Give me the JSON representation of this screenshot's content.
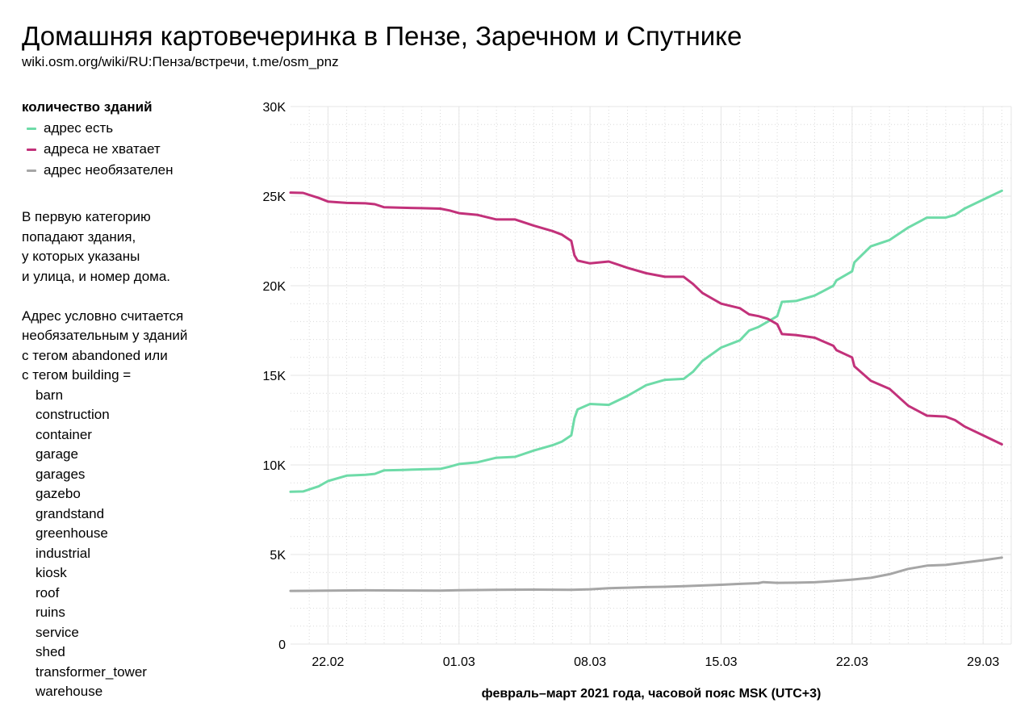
{
  "header": {
    "title": "Домашняя картовечеринка в Пензе, Заречном и Спутнике",
    "subtitle": "wiki.osm.org/wiki/RU:Пенза/встречи, t.me/osm_pnz"
  },
  "legend": {
    "title": "количество зданий",
    "items": [
      {
        "label": "адрес есть",
        "color": "#6edba8"
      },
      {
        "label": "адреса не хватает",
        "color": "#c2317a"
      },
      {
        "label": "адрес необязателен",
        "color": "#a6a6a6"
      }
    ]
  },
  "note": {
    "paragraph1": [
      "В первую категорию",
      "попадают здания,",
      "у которых указаны",
      "и улица, и номер дома."
    ],
    "paragraph2": [
      "Адрес условно считается",
      "необязательным у зданий",
      "с тегом abandoned или",
      "с тегом building ="
    ],
    "tags": [
      "barn",
      "construction",
      "container",
      "garage",
      "garages",
      "gazebo",
      "grandstand",
      "greenhouse",
      "industrial",
      "kiosk",
      "roof",
      "ruins",
      "service",
      "shed",
      "transformer_tower",
      "warehouse"
    ]
  },
  "chart_data": {
    "type": "line",
    "xlabel": "февраль–март 2021 года, часовой пояс MSK (UTC+3)",
    "ylabel": "",
    "xlim": [
      "2021-02-20",
      "2021-03-30 12:00"
    ],
    "ylim": [
      0,
      30000
    ],
    "x_ticks": [
      {
        "date": "2021-02-22",
        "label": "22.02"
      },
      {
        "date": "2021-03-01",
        "label": "01.03"
      },
      {
        "date": "2021-03-08",
        "label": "08.03"
      },
      {
        "date": "2021-03-15",
        "label": "15.03"
      },
      {
        "date": "2021-03-22",
        "label": "22.03"
      },
      {
        "date": "2021-03-29",
        "label": "29.03"
      }
    ],
    "y_ticks": [
      {
        "value": 0,
        "label": "0"
      },
      {
        "value": 5000,
        "label": "5K"
      },
      {
        "value": 10000,
        "label": "10K"
      },
      {
        "value": 15000,
        "label": "15K"
      },
      {
        "value": 20000,
        "label": "20K"
      },
      {
        "value": 25000,
        "label": "25K"
      },
      {
        "value": 30000,
        "label": "30K"
      }
    ],
    "grid": true,
    "legend_position": "left",
    "series": [
      {
        "name": "адрес есть",
        "color": "#6edba8",
        "points": [
          [
            "2021-02-20 00:00",
            8500
          ],
          [
            "2021-02-20 16:00",
            8520
          ],
          [
            "2021-02-21 12:00",
            8800
          ],
          [
            "2021-02-22 00:00",
            9100
          ],
          [
            "2021-02-23 00:00",
            9400
          ],
          [
            "2021-02-24 00:00",
            9450
          ],
          [
            "2021-02-24 12:00",
            9500
          ],
          [
            "2021-02-25 00:00",
            9700
          ],
          [
            "2021-02-26 00:00",
            9720
          ],
          [
            "2021-02-27 00:00",
            9750
          ],
          [
            "2021-02-28 00:00",
            9780
          ],
          [
            "2021-02-28 12:00",
            9900
          ],
          [
            "2021-03-01 00:00",
            10050
          ],
          [
            "2021-03-02 00:00",
            10150
          ],
          [
            "2021-03-03 00:00",
            10400
          ],
          [
            "2021-03-04 00:00",
            10450
          ],
          [
            "2021-03-05 00:00",
            10800
          ],
          [
            "2021-03-06 00:00",
            11100
          ],
          [
            "2021-03-06 12:00",
            11300
          ],
          [
            "2021-03-07 00:00",
            11650
          ],
          [
            "2021-03-07 04:00",
            12600
          ],
          [
            "2021-03-07 08:00",
            13100
          ],
          [
            "2021-03-08 00:00",
            13400
          ],
          [
            "2021-03-09 00:00",
            13350
          ],
          [
            "2021-03-10 00:00",
            13850
          ],
          [
            "2021-03-11 00:00",
            14450
          ],
          [
            "2021-03-12 00:00",
            14750
          ],
          [
            "2021-03-13 00:00",
            14800
          ],
          [
            "2021-03-13 12:00",
            15200
          ],
          [
            "2021-03-14 00:00",
            15800
          ],
          [
            "2021-03-15 00:00",
            16550
          ],
          [
            "2021-03-16 00:00",
            16950
          ],
          [
            "2021-03-16 12:00",
            17500
          ],
          [
            "2021-03-17 00:00",
            17700
          ],
          [
            "2021-03-17 12:00",
            18000
          ],
          [
            "2021-03-18 00:00",
            18300
          ],
          [
            "2021-03-18 06:00",
            19100
          ],
          [
            "2021-03-19 00:00",
            19150
          ],
          [
            "2021-03-20 00:00",
            19450
          ],
          [
            "2021-03-21 00:00",
            20000
          ],
          [
            "2021-03-21 04:00",
            20300
          ],
          [
            "2021-03-22 00:00",
            20800
          ],
          [
            "2021-03-22 03:00",
            21300
          ],
          [
            "2021-03-23 00:00",
            22200
          ],
          [
            "2021-03-24 00:00",
            22550
          ],
          [
            "2021-03-25 00:00",
            23250
          ],
          [
            "2021-03-26 00:00",
            23800
          ],
          [
            "2021-03-27 00:00",
            23800
          ],
          [
            "2021-03-27 12:00",
            23950
          ],
          [
            "2021-03-28 00:00",
            24300
          ],
          [
            "2021-03-29 00:00",
            24800
          ],
          [
            "2021-03-30 00:00",
            25300
          ]
        ]
      },
      {
        "name": "адреса не хватает",
        "color": "#c2317a",
        "points": [
          [
            "2021-02-20 00:00",
            25200
          ],
          [
            "2021-02-20 16:00",
            25180
          ],
          [
            "2021-02-21 12:00",
            24900
          ],
          [
            "2021-02-22 00:00",
            24700
          ],
          [
            "2021-02-23 00:00",
            24620
          ],
          [
            "2021-02-24 00:00",
            24600
          ],
          [
            "2021-02-24 12:00",
            24550
          ],
          [
            "2021-02-25 00:00",
            24380
          ],
          [
            "2021-02-26 00:00",
            24350
          ],
          [
            "2021-02-27 00:00",
            24330
          ],
          [
            "2021-02-28 00:00",
            24300
          ],
          [
            "2021-02-28 12:00",
            24200
          ],
          [
            "2021-03-01 00:00",
            24050
          ],
          [
            "2021-03-02 00:00",
            23950
          ],
          [
            "2021-03-03 00:00",
            23700
          ],
          [
            "2021-03-04 00:00",
            23700
          ],
          [
            "2021-03-05 00:00",
            23350
          ],
          [
            "2021-03-06 00:00",
            23050
          ],
          [
            "2021-03-06 12:00",
            22850
          ],
          [
            "2021-03-07 00:00",
            22500
          ],
          [
            "2021-03-07 04:00",
            21700
          ],
          [
            "2021-03-07 08:00",
            21400
          ],
          [
            "2021-03-08 00:00",
            21250
          ],
          [
            "2021-03-09 00:00",
            21350
          ],
          [
            "2021-03-10 00:00",
            21000
          ],
          [
            "2021-03-11 00:00",
            20700
          ],
          [
            "2021-03-12 00:00",
            20500
          ],
          [
            "2021-03-13 00:00",
            20500
          ],
          [
            "2021-03-13 12:00",
            20100
          ],
          [
            "2021-03-14 00:00",
            19600
          ],
          [
            "2021-03-15 00:00",
            19000
          ],
          [
            "2021-03-16 00:00",
            18750
          ],
          [
            "2021-03-16 12:00",
            18400
          ],
          [
            "2021-03-17 00:00",
            18300
          ],
          [
            "2021-03-17 12:00",
            18150
          ],
          [
            "2021-03-18 00:00",
            17850
          ],
          [
            "2021-03-18 06:00",
            17300
          ],
          [
            "2021-03-19 00:00",
            17250
          ],
          [
            "2021-03-20 00:00",
            17100
          ],
          [
            "2021-03-21 00:00",
            16650
          ],
          [
            "2021-03-21 04:00",
            16400
          ],
          [
            "2021-03-22 00:00",
            16000
          ],
          [
            "2021-03-22 03:00",
            15500
          ],
          [
            "2021-03-23 00:00",
            14700
          ],
          [
            "2021-03-24 00:00",
            14250
          ],
          [
            "2021-03-25 00:00",
            13300
          ],
          [
            "2021-03-26 00:00",
            12750
          ],
          [
            "2021-03-27 00:00",
            12700
          ],
          [
            "2021-03-27 12:00",
            12500
          ],
          [
            "2021-03-28 00:00",
            12150
          ],
          [
            "2021-03-29 00:00",
            11650
          ],
          [
            "2021-03-30 00:00",
            11150
          ]
        ]
      },
      {
        "name": "адрес необязателен",
        "color": "#a6a6a6",
        "points": [
          [
            "2021-02-20 00:00",
            2970
          ],
          [
            "2021-02-22 00:00",
            2980
          ],
          [
            "2021-02-24 00:00",
            3000
          ],
          [
            "2021-02-26 00:00",
            2990
          ],
          [
            "2021-02-28 00:00",
            2980
          ],
          [
            "2021-03-01 00:00",
            3010
          ],
          [
            "2021-03-03 00:00",
            3030
          ],
          [
            "2021-03-05 00:00",
            3040
          ],
          [
            "2021-03-07 00:00",
            3030
          ],
          [
            "2021-03-08 00:00",
            3060
          ],
          [
            "2021-03-09 00:00",
            3120
          ],
          [
            "2021-03-10 00:00",
            3150
          ],
          [
            "2021-03-11 00:00",
            3180
          ],
          [
            "2021-03-12 00:00",
            3200
          ],
          [
            "2021-03-13 00:00",
            3230
          ],
          [
            "2021-03-14 00:00",
            3270
          ],
          [
            "2021-03-15 00:00",
            3310
          ],
          [
            "2021-03-16 00:00",
            3360
          ],
          [
            "2021-03-17 00:00",
            3400
          ],
          [
            "2021-03-17 06:00",
            3460
          ],
          [
            "2021-03-18 00:00",
            3420
          ],
          [
            "2021-03-19 00:00",
            3430
          ],
          [
            "2021-03-20 00:00",
            3450
          ],
          [
            "2021-03-21 00:00",
            3520
          ],
          [
            "2021-03-22 00:00",
            3600
          ],
          [
            "2021-03-23 00:00",
            3700
          ],
          [
            "2021-03-24 00:00",
            3900
          ],
          [
            "2021-03-25 00:00",
            4200
          ],
          [
            "2021-03-26 00:00",
            4380
          ],
          [
            "2021-03-27 00:00",
            4420
          ],
          [
            "2021-03-28 00:00",
            4550
          ],
          [
            "2021-03-29 00:00",
            4680
          ],
          [
            "2021-03-30 00:00",
            4830
          ]
        ]
      }
    ]
  }
}
